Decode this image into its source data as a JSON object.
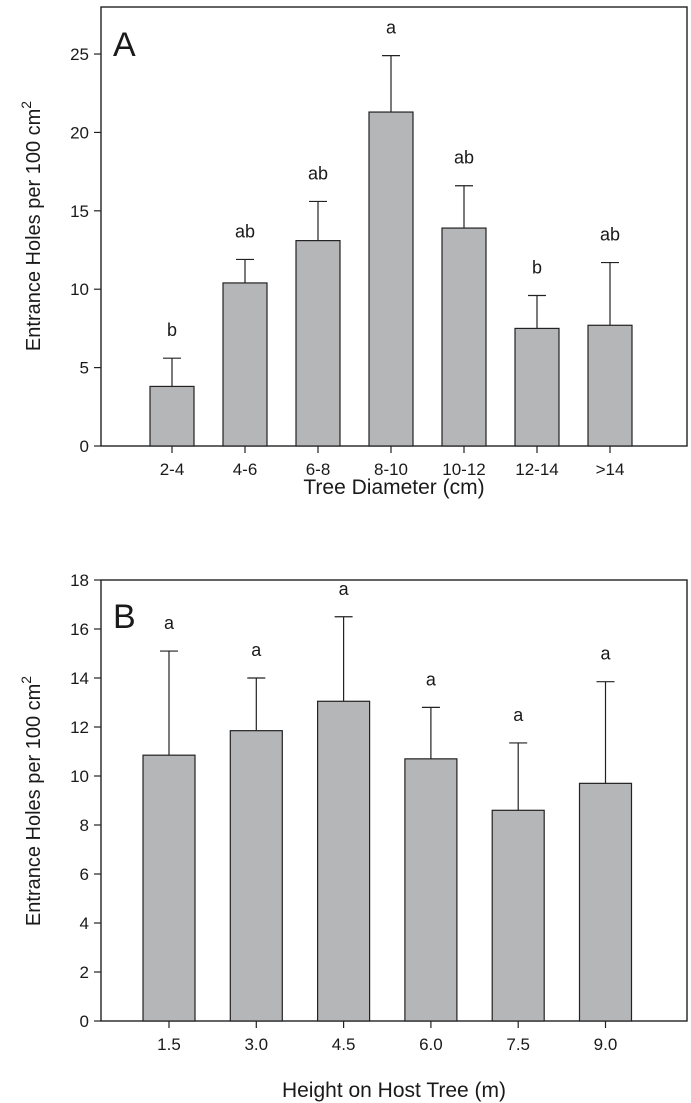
{
  "chart_data": [
    {
      "type": "bar",
      "panel_label": "A",
      "xlabel": "Tree Diameter (cm)",
      "ylabel": "Entrance Holes per 100 cm",
      "ylabel_superscript": "2",
      "categories": [
        "2-4",
        "4-6",
        "6-8",
        "8-10",
        "10-12",
        "12-14",
        ">14"
      ],
      "values": [
        3.8,
        10.4,
        13.1,
        21.3,
        13.9,
        7.5,
        7.7
      ],
      "error_upper": [
        5.6,
        11.9,
        15.6,
        24.9,
        16.6,
        9.6,
        11.7
      ],
      "significance_letters": [
        "b",
        "ab",
        "ab",
        "a",
        "ab",
        "b",
        "ab"
      ],
      "ylim": [
        0,
        28
      ],
      "yticks": [
        0,
        5,
        10,
        15,
        20,
        25
      ],
      "ytick_labels": [
        "0",
        "5",
        "10",
        "15",
        "20",
        "25"
      ],
      "grid": false,
      "bar_color": "#b5b6b8"
    },
    {
      "type": "bar",
      "panel_label": "B",
      "xlabel": "Height on Host Tree (m)",
      "ylabel": "Entrance Holes per 100 cm",
      "ylabel_superscript": "2",
      "categories": [
        "1.5",
        "3.0",
        "4.5",
        "6.0",
        "7.5",
        "9.0"
      ],
      "values": [
        10.85,
        11.85,
        13.05,
        10.7,
        8.6,
        9.7
      ],
      "error_upper": [
        15.1,
        14.0,
        16.5,
        12.8,
        11.35,
        13.85
      ],
      "significance_letters": [
        "a",
        "a",
        "a",
        "a",
        "a",
        "a"
      ],
      "ylim": [
        0,
        18
      ],
      "yticks": [
        0,
        2,
        4,
        6,
        8,
        10,
        12,
        14,
        16,
        18
      ],
      "ytick_labels": [
        "0",
        "2",
        "4",
        "6",
        "8",
        "10",
        "12",
        "14",
        "16",
        "18"
      ],
      "grid": false,
      "bar_color": "#b5b6b8"
    }
  ]
}
